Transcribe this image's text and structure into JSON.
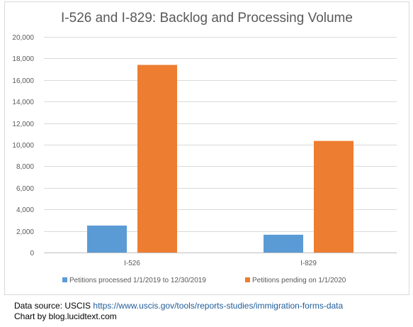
{
  "chart_data": {
    "type": "bar",
    "title": "I-526 and I-829: Backlog and Processing Volume",
    "categories": [
      "I-526",
      "I-829"
    ],
    "series": [
      {
        "name": "Petitions processed 1/1/2019 to 12/30/2019",
        "color": "#5b9bd5",
        "values": [
          2500,
          1650
        ]
      },
      {
        "name": "Petitions pending on 1/1/2020",
        "color": "#ed7d31",
        "values": [
          17400,
          10350
        ]
      }
    ],
    "ylim": [
      0,
      20000
    ],
    "yticks": [
      0,
      2000,
      4000,
      6000,
      8000,
      10000,
      12000,
      14000,
      16000,
      18000,
      20000
    ],
    "ytick_labels": [
      "0",
      "2,000",
      "4,000",
      "6,000",
      "8,000",
      "10,000",
      "12,000",
      "14,000",
      "16,000",
      "18,000",
      "20,000"
    ],
    "grid": true,
    "legend_position": "bottom"
  },
  "footer": {
    "source_label": "Data source: USCIS",
    "source_url": "https://www.uscis.gov/tools/reports-studies/immigration-forms-data",
    "credit": "Chart by blog.lucidtext.com"
  }
}
